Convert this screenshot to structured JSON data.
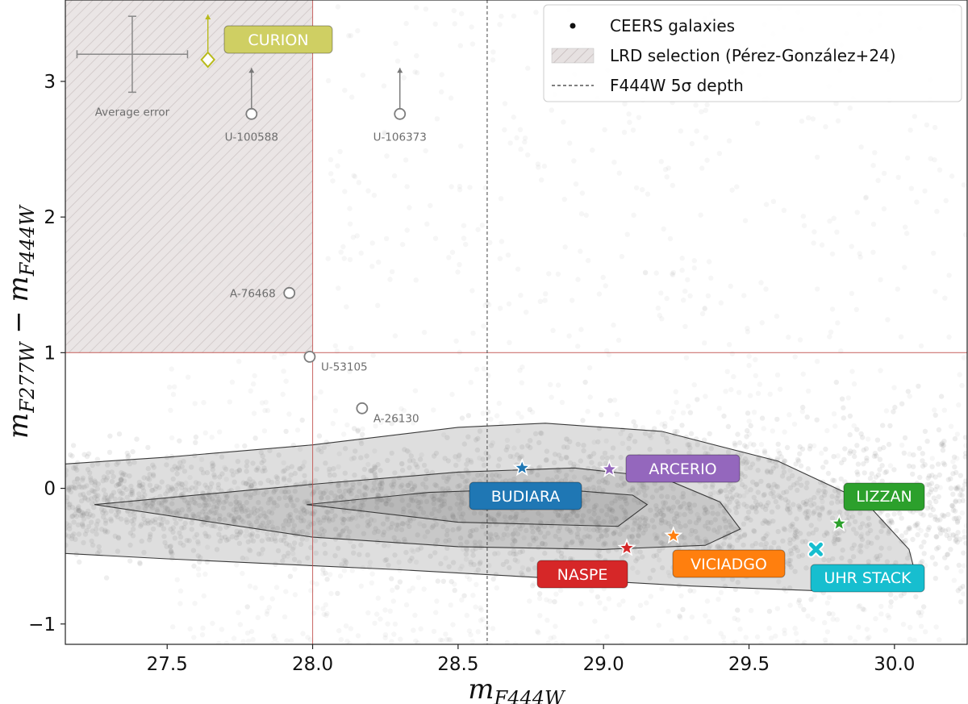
{
  "chart_data": {
    "type": "scatter",
    "xlabel": "m_F444W",
    "ylabel": "m_F277W − m_F444W",
    "xlim": [
      27.15,
      30.25
    ],
    "ylim": [
      -1.15,
      3.6
    ],
    "xticks": [
      27.5,
      28.0,
      28.5,
      29.0,
      29.5,
      30.0
    ],
    "xtick_labels": [
      "27.5",
      "28.0",
      "28.5",
      "29.0",
      "29.5",
      "30.0"
    ],
    "yticks": [
      -1,
      0,
      1,
      2,
      3
    ],
    "ytick_labels": [
      "−1",
      "0",
      "1",
      "2",
      "3"
    ],
    "depth_line_x": 28.6,
    "lrd_selection": {
      "x_max": 28.0,
      "y_min": 1.0
    },
    "background_sample": {
      "name": "CEERS galaxies",
      "description": "grey scatter cloud of CEERS galaxies, densest near colour 0 and magnitude 28-29.5"
    },
    "contours": [
      {
        "level": "outer",
        "points": [
          [
            27.15,
            0.18
          ],
          [
            27.5,
            0.23
          ],
          [
            28.0,
            0.32
          ],
          [
            28.5,
            0.45
          ],
          [
            28.8,
            0.48
          ],
          [
            29.2,
            0.42
          ],
          [
            29.6,
            0.2
          ],
          [
            29.9,
            -0.1
          ],
          [
            30.05,
            -0.45
          ],
          [
            30.08,
            -0.7
          ],
          [
            29.8,
            -0.76
          ],
          [
            29.3,
            -0.72
          ],
          [
            28.8,
            -0.66
          ],
          [
            28.3,
            -0.6
          ],
          [
            27.8,
            -0.55
          ],
          [
            27.5,
            -0.52
          ],
          [
            27.15,
            -0.48
          ]
        ]
      },
      {
        "level": "middle",
        "points": [
          [
            27.25,
            -0.12
          ],
          [
            28.0,
            0.03
          ],
          [
            28.5,
            0.12
          ],
          [
            28.9,
            0.15
          ],
          [
            29.2,
            0.08
          ],
          [
            29.4,
            -0.1
          ],
          [
            29.47,
            -0.3
          ],
          [
            29.35,
            -0.42
          ],
          [
            29.0,
            -0.45
          ],
          [
            28.5,
            -0.43
          ],
          [
            28.0,
            -0.36
          ],
          [
            27.25,
            -0.12
          ]
        ]
      },
      {
        "level": "inner",
        "points": [
          [
            27.98,
            -0.12
          ],
          [
            28.4,
            -0.03
          ],
          [
            28.8,
            0.0
          ],
          [
            29.1,
            -0.05
          ],
          [
            29.15,
            -0.12
          ],
          [
            29.05,
            -0.28
          ],
          [
            28.5,
            -0.25
          ],
          [
            27.98,
            -0.12
          ]
        ]
      }
    ],
    "series": [
      {
        "name": "CURION",
        "marker": "diamond",
        "color": "#b8ba1a",
        "x": 27.64,
        "y": 3.16,
        "lower_limit": true,
        "label": "CURION"
      },
      {
        "name": "U-100588",
        "marker": "circle",
        "x": 27.79,
        "y": 2.76,
        "lower_limit": true,
        "label": "U-100588"
      },
      {
        "name": "U-106373",
        "marker": "circle",
        "x": 28.3,
        "y": 2.76,
        "lower_limit": true,
        "label": "U-106373"
      },
      {
        "name": "A-76468",
        "marker": "circle",
        "x": 27.92,
        "y": 1.44,
        "lower_limit": false,
        "label": "A-76468"
      },
      {
        "name": "U-53105",
        "marker": "circle",
        "x": 27.99,
        "y": 0.97,
        "lower_limit": false,
        "label": "U-53105"
      },
      {
        "name": "A-26130",
        "marker": "circle",
        "x": 28.17,
        "y": 0.59,
        "lower_limit": false,
        "label": "A-26130"
      },
      {
        "name": "BUDIARA",
        "marker": "star",
        "color": "#1f77b4",
        "x": 28.72,
        "y": 0.15,
        "label": "BUDIARA"
      },
      {
        "name": "ARCERIO",
        "marker": "star",
        "color": "#9467bd",
        "x": 29.02,
        "y": 0.14,
        "label": "ARCERIO"
      },
      {
        "name": "NASPE",
        "marker": "star",
        "color": "#d62728",
        "x": 29.08,
        "y": -0.44,
        "label": "NASPE"
      },
      {
        "name": "VICIADGO",
        "marker": "star",
        "color": "#ff7f0e",
        "x": 29.24,
        "y": -0.35,
        "label": "VICIADGO"
      },
      {
        "name": "LIZZAN",
        "marker": "star",
        "color": "#2ca02c",
        "x": 29.81,
        "y": -0.26,
        "label": "LIZZAN"
      },
      {
        "name": "UHR STACK",
        "marker": "x",
        "color": "#17becf",
        "x": 29.73,
        "y": -0.45,
        "label": "UHR STACK"
      }
    ],
    "average_error": {
      "label": "Average error",
      "x": 27.38,
      "y": 3.2,
      "xerr": 0.19,
      "yerr": 0.28
    },
    "legend": {
      "placement": "top-right",
      "entries": [
        {
          "symbol": "dot",
          "label": "CEERS galaxies"
        },
        {
          "symbol": "hatch",
          "label": "LRD selection (Pérez-González+24)"
        },
        {
          "symbol": "dashed",
          "label": "F444W 5σ depth"
        }
      ]
    }
  }
}
